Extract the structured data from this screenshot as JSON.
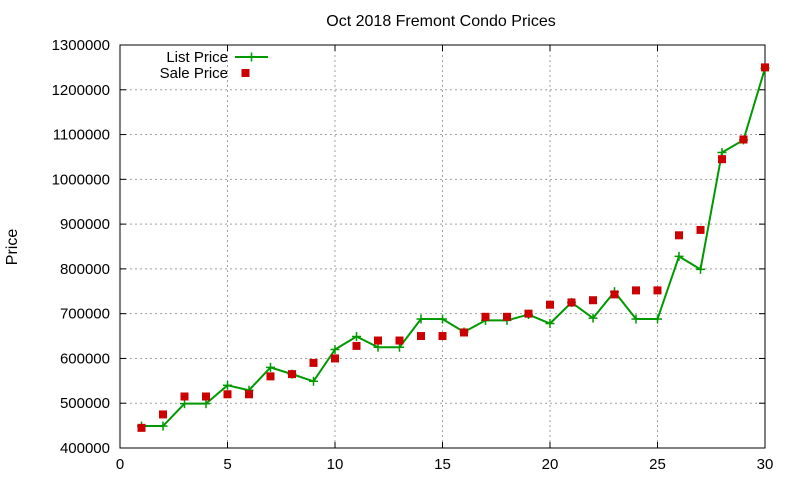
{
  "chart_data": {
    "type": "line",
    "title": "Oct 2018 Fremont Condo Prices",
    "xlabel": "",
    "ylabel": "Price",
    "xlim": [
      0,
      30
    ],
    "ylim": [
      400000,
      1300000
    ],
    "x_ticks": [
      0,
      5,
      10,
      15,
      20,
      25,
      30
    ],
    "y_ticks": [
      400000,
      500000,
      600000,
      700000,
      800000,
      900000,
      1000000,
      1100000,
      1200000,
      1300000
    ],
    "grid": true,
    "legend_position": "top-left",
    "series": [
      {
        "name": "List Price",
        "style": "line-with-plus-markers",
        "color": "#009900",
        "x": [
          1,
          2,
          3,
          4,
          5,
          6,
          7,
          8,
          9,
          10,
          11,
          12,
          13,
          14,
          15,
          16,
          17,
          18,
          19,
          20,
          21,
          22,
          23,
          24,
          25,
          26,
          27,
          28,
          29,
          30
        ],
        "y": [
          449000,
          449000,
          499000,
          499000,
          540000,
          529000,
          580000,
          565000,
          549000,
          620000,
          649000,
          625000,
          625000,
          688000,
          688000,
          659000,
          685000,
          685000,
          698000,
          678000,
          725000,
          690000,
          749000,
          688000,
          688000,
          828000,
          799000,
          1060000,
          1088000,
          1248000
        ]
      },
      {
        "name": "Sale Price",
        "style": "square-markers",
        "color": "#cc0000",
        "x": [
          1,
          2,
          3,
          4,
          5,
          6,
          7,
          8,
          9,
          10,
          11,
          12,
          13,
          14,
          15,
          16,
          17,
          18,
          19,
          20,
          21,
          22,
          23,
          24,
          25,
          26,
          27,
          28,
          29,
          30
        ],
        "y": [
          445000,
          475000,
          515000,
          515000,
          520000,
          520000,
          560000,
          565000,
          590000,
          600000,
          628000,
          640000,
          640000,
          650000,
          650000,
          658000,
          693000,
          693000,
          700000,
          720000,
          725000,
          730000,
          743000,
          752000,
          752000,
          875000,
          887000,
          1045000,
          1089000,
          1250000
        ]
      }
    ]
  }
}
